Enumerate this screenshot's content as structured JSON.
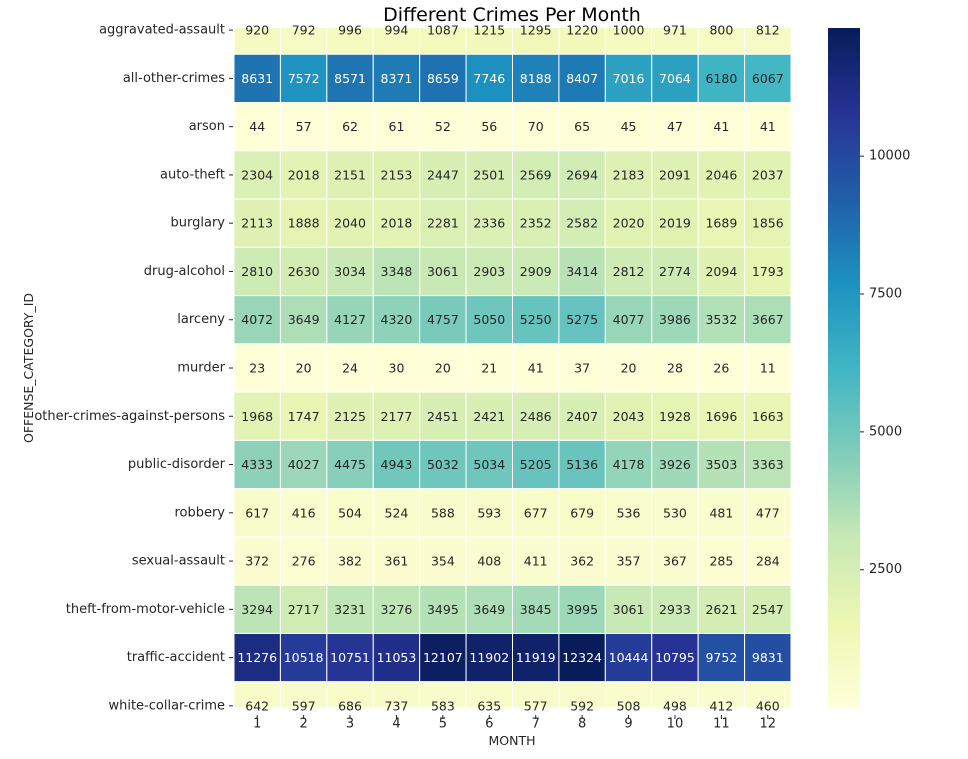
{
  "chart_data": {
    "type": "heatmap",
    "title": "Different Crimes Per Month",
    "xlabel": "MONTH",
    "ylabel": "OFFENSE_CATEGORY_ID",
    "x_categories": [
      "1",
      "2",
      "3",
      "4",
      "5",
      "6",
      "7",
      "8",
      "9",
      "10",
      "11",
      "12"
    ],
    "y_categories": [
      "aggravated-assault",
      "all-other-crimes",
      "arson",
      "auto-theft",
      "burglary",
      "drug-alcohol",
      "larceny",
      "murder",
      "other-crimes-against-persons",
      "public-disorder",
      "robbery",
      "sexual-assault",
      "theft-from-motor-vehicle",
      "traffic-accident",
      "white-collar-crime"
    ],
    "values": [
      [
        920,
        792,
        996,
        994,
        1087,
        1215,
        1295,
        1220,
        1000,
        971,
        800,
        812
      ],
      [
        8631,
        7572,
        8571,
        8371,
        8659,
        7746,
        8188,
        8407,
        7016,
        7064,
        6180,
        6067
      ],
      [
        44,
        57,
        62,
        61,
        52,
        56,
        70,
        65,
        45,
        47,
        41,
        41
      ],
      [
        2304,
        2018,
        2151,
        2153,
        2447,
        2501,
        2569,
        2694,
        2183,
        2091,
        2046,
        2037
      ],
      [
        2113,
        1888,
        2040,
        2018,
        2281,
        2336,
        2352,
        2582,
        2020,
        2019,
        1689,
        1856
      ],
      [
        2810,
        2630,
        3034,
        3348,
        3061,
        2903,
        2909,
        3414,
        2812,
        2774,
        2094,
        1793
      ],
      [
        4072,
        3649,
        4127,
        4320,
        4757,
        5050,
        5250,
        5275,
        4077,
        3986,
        3532,
        3667
      ],
      [
        23,
        20,
        24,
        30,
        20,
        21,
        41,
        37,
        20,
        28,
        26,
        11
      ],
      [
        1968,
        1747,
        2125,
        2177,
        2451,
        2421,
        2486,
        2407,
        2043,
        1928,
        1696,
        1663
      ],
      [
        4333,
        4027,
        4475,
        4943,
        5032,
        5034,
        5205,
        5136,
        4178,
        3926,
        3503,
        3363
      ],
      [
        617,
        416,
        504,
        524,
        588,
        593,
        677,
        679,
        536,
        530,
        481,
        477
      ],
      [
        372,
        276,
        382,
        361,
        354,
        408,
        411,
        362,
        357,
        367,
        285,
        284
      ],
      [
        3294,
        2717,
        3231,
        3276,
        3495,
        3649,
        3845,
        3995,
        3061,
        2933,
        2621,
        2547
      ],
      [
        11276,
        10518,
        10751,
        11053,
        12107,
        11902,
        11919,
        12324,
        10444,
        10795,
        9752,
        9831
      ],
      [
        642,
        597,
        686,
        737,
        583,
        635,
        577,
        592,
        508,
        498,
        412,
        460
      ]
    ],
    "colormap": "YlGnBu",
    "color_range": [
      11,
      12324
    ],
    "colorbar_ticks": [
      2500,
      5000,
      7500,
      10000
    ],
    "annotated": true,
    "grid": false,
    "legend": "colorbar-right"
  }
}
